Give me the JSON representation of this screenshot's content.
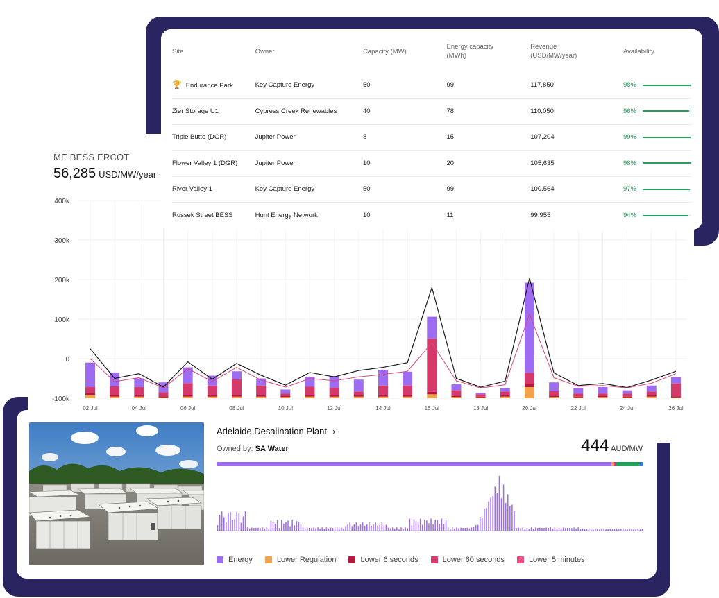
{
  "table": {
    "headers": {
      "site": "Site",
      "owner": "Owner",
      "capacity": "Capacity (MW)",
      "energy": "Energy capacity (MWh)",
      "revenue": "Revenue (USD/MW/year)",
      "availability": "Availability"
    },
    "rows": [
      {
        "site": "Endurance Park",
        "trophy": true,
        "owner": "Key Capture Energy",
        "capacity": "50",
        "energy": "99",
        "revenue": "117,850",
        "availability": "98%",
        "avail_value": 98
      },
      {
        "site": "Zier Storage U1",
        "owner": "Cypress Creek Renewables",
        "capacity": "40",
        "energy": "78",
        "revenue": "110,050",
        "availability": "96%",
        "avail_value": 96
      },
      {
        "site": "Triple Butte (DGR)",
        "owner": "Jupiter Power",
        "capacity": "8",
        "energy": "15",
        "revenue": "107,204",
        "availability": "99%",
        "avail_value": 99
      },
      {
        "site": "Flower Valley 1 (DGR)",
        "owner": "Jupiter Power",
        "capacity": "10",
        "energy": "20",
        "revenue": "105,635",
        "availability": "98%",
        "avail_value": 98
      },
      {
        "site": "River Valley 1",
        "owner": "Key Capture Energy",
        "capacity": "50",
        "energy": "99",
        "revenue": "100,564",
        "availability": "97%",
        "avail_value": 97
      },
      {
        "site": "Russek Street BESS",
        "owner": "Hunt Energy Network",
        "capacity": "10",
        "energy": "11",
        "revenue": "99,955",
        "availability": "94%",
        "avail_value": 94
      }
    ],
    "trophy_icon": "trophy-icon"
  },
  "chart_header": {
    "title": "ME BESS ERCOT",
    "value": "56,285",
    "unit": "USD/MW/year"
  },
  "chart_data": {
    "type": "bar",
    "stacked": true,
    "y_ticks": [
      "400k",
      "300k",
      "200k",
      "100k",
      "0",
      "-100k"
    ],
    "ylim": [
      -100000,
      400000
    ],
    "x_tick_labels": [
      "02 Jul",
      "04 Jul",
      "06 Jul",
      "08 Jul",
      "10 Jul",
      "12 Jul",
      "14 Jul",
      "16 Jul",
      "18 Jul",
      "20 Jul",
      "22 Jul",
      "24 Jul",
      "26 Jul"
    ],
    "categories": [
      "02 Jul",
      "03 Jul",
      "04 Jul",
      "05 Jul",
      "06 Jul",
      "07 Jul",
      "08 Jul",
      "09 Jul",
      "10 Jul",
      "11 Jul",
      "12 Jul",
      "13 Jul",
      "14 Jul",
      "15 Jul",
      "16 Jul",
      "17 Jul",
      "18 Jul",
      "19 Jul",
      "20 Jul",
      "21 Jul",
      "22 Jul",
      "23 Jul",
      "24 Jul",
      "25 Jul",
      "26 Jul"
    ],
    "series": [
      {
        "name": "Lower Regulation",
        "color": "#f2a24a",
        "values": [
          8000,
          4000,
          4000,
          2000,
          4000,
          4000,
          4000,
          4000,
          3000,
          4000,
          4000,
          4000,
          4000,
          4000,
          10000,
          3000,
          2000,
          4000,
          28000,
          3000,
          2000,
          3000,
          2000,
          4000,
          2000
        ]
      },
      {
        "name": "Lower 6 seconds",
        "color": "#b3183f",
        "values": [
          5000,
          4000,
          4000,
          3000,
          4000,
          4000,
          4000,
          3000,
          3000,
          3000,
          4000,
          3000,
          3000,
          3000,
          6000,
          3000,
          2000,
          3000,
          8000,
          3000,
          2000,
          3000,
          2000,
          3000,
          3000
        ]
      },
      {
        "name": "Lower 60 seconds",
        "color": "#d5386a",
        "values": [
          15000,
          22000,
          20000,
          10000,
          30000,
          24000,
          40000,
          25000,
          6000,
          22000,
          18000,
          10000,
          25000,
          25000,
          135000,
          14000,
          6000,
          10000,
          28000,
          12000,
          8000,
          6000,
          8000,
          10000,
          32000
        ]
      },
      {
        "name": "Energy",
        "color": "#9e6cf0",
        "values": [
          62000,
          35000,
          22000,
          25000,
          40000,
          25000,
          20000,
          18000,
          10000,
          25000,
          30000,
          30000,
          40000,
          35000,
          55000,
          15000,
          4000,
          8000,
          228000,
          22000,
          14000,
          16000,
          8000,
          15000,
          16000
        ]
      }
    ],
    "lines": [
      {
        "name": "",
        "color": "#1a1a1a",
        "values": [
          25000,
          -50000,
          -38000,
          -72000,
          -8000,
          -52000,
          -12000,
          -42000,
          -67000,
          -35000,
          -46000,
          -30000,
          -22000,
          -10000,
          180000,
          -50000,
          -72000,
          -57000,
          203000,
          -36000,
          -68000,
          -63000,
          -73000,
          -54000,
          -32000
        ]
      },
      {
        "name": "",
        "color": "#d9477a",
        "values": [
          0,
          -58000,
          -48000,
          -74000,
          -25000,
          -58000,
          -22000,
          -54000,
          -72000,
          -50000,
          -56000,
          -46000,
          -40000,
          -32000,
          40000,
          -56000,
          -74000,
          -66000,
          113000,
          -48000,
          -70000,
          -68000,
          -74000,
          -62000,
          -38000
        ]
      }
    ]
  },
  "plant": {
    "name": "Adelaide Desalination Plant",
    "chevron_icon": "chevron-right-icon",
    "owned_by_label": "Owned by:",
    "owner": "SA Water",
    "value": "444",
    "unit": "AUD/MW",
    "photo": "battery-storage-photo",
    "stack": [
      {
        "name": "Energy",
        "fraction": 0.925,
        "color": "#9e6cf0"
      },
      {
        "name": "Lower Regulation",
        "fraction": 0.005,
        "color": "#f2a24a"
      },
      {
        "name": "Lower 6 seconds",
        "fraction": 0.005,
        "color": "#d5386a"
      },
      {
        "name": "Lower 60 seconds",
        "fraction": 0.055,
        "color": "#22a35a"
      },
      {
        "name": "Lower 5 minutes",
        "fraction": 0.01,
        "color": "#3b7bd6"
      }
    ],
    "spark_color": "#9e6cf0",
    "legend": [
      {
        "label": "Energy",
        "color": "#9e6cf0"
      },
      {
        "label": "Lower Regulation",
        "color": "#f2a24a"
      },
      {
        "label": "Lower 6 seconds",
        "color": "#b3183f"
      },
      {
        "label": "Lower 60 seconds",
        "color": "#d5386a"
      },
      {
        "label": "Lower 5 minutes",
        "color": "#ef4f86"
      }
    ]
  }
}
